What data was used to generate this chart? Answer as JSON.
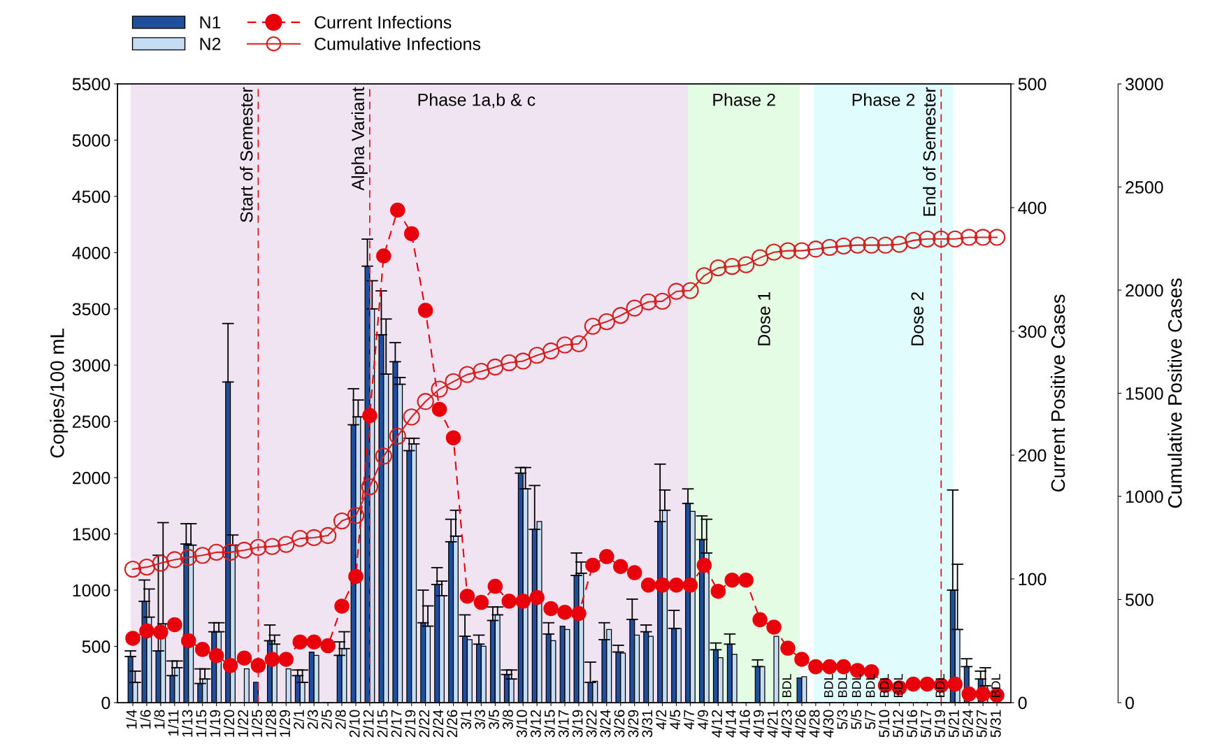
{
  "chart_data": {
    "type": "bar",
    "categories": [
      "1/4",
      "1/6",
      "1/8",
      "1/11",
      "1/13",
      "1/15",
      "1/19",
      "1/20",
      "1/22",
      "1/25",
      "1/28",
      "1/29",
      "2/1",
      "2/3",
      "2/5",
      "2/8",
      "2/10",
      "2/12",
      "2/15",
      "2/17",
      "2/19",
      "2/22",
      "2/24",
      "2/26",
      "3/1",
      "3/3",
      "3/5",
      "3/8",
      "3/10",
      "3/12",
      "3/15",
      "3/17",
      "3/19",
      "3/22",
      "3/24",
      "3/26",
      "3/29",
      "3/31",
      "4/2",
      "4/5",
      "4/7",
      "4/9",
      "4/12",
      "4/14",
      "4/16",
      "4/19",
      "4/21",
      "4/23",
      "4/26",
      "4/28",
      "4/30",
      "5/3",
      "5/5",
      "5/7",
      "5/10",
      "5/12",
      "5/16",
      "5/17",
      "5/19",
      "5/21",
      "5/24",
      "5/27",
      "5/31"
    ],
    "ylabel": "Copies/100 mL",
    "y2label": "Current Positive Cases",
    "y3label": "Cumulative Positive Cases",
    "ylim": [
      0,
      5500
    ],
    "yticks": [
      0,
      500,
      1000,
      1500,
      2000,
      2500,
      3000,
      3500,
      4000,
      4500,
      5000,
      5500
    ],
    "y2lim": [
      0,
      500
    ],
    "y2ticks": [
      0,
      100,
      200,
      300,
      400,
      500
    ],
    "y3lim": [
      0,
      3000
    ],
    "y3ticks": [
      0,
      500,
      1000,
      1500,
      2000,
      2500,
      3000
    ],
    "legend": "top left",
    "grid": false,
    "series": [
      {
        "name": "N1",
        "color": "#1f4e9c",
        "values": [
          410,
          900,
          460,
          240,
          1410,
          170,
          630,
          2850,
          null,
          180,
          550,
          null,
          240,
          450,
          null,
          420,
          2470,
          3880,
          3270,
          3030,
          2240,
          710,
          1050,
          1430,
          590,
          520,
          730,
          250,
          2040,
          1540,
          610,
          680,
          1130,
          180,
          560,
          450,
          740,
          630,
          1610,
          660,
          1770,
          1450,
          470,
          520,
          null,
          320,
          null,
          null,
          220,
          null,
          null,
          null,
          null,
          null,
          null,
          null,
          null,
          null,
          null,
          1000,
          320,
          210,
          null
        ],
        "errors": [
          [
            410,
            460
          ],
          [
            900,
            1090
          ],
          [
            460,
            1310
          ],
          [
            240,
            370
          ],
          [
            1410,
            1590
          ],
          [
            170,
            300
          ],
          [
            630,
            710
          ],
          [
            2850,
            3370
          ],
          null,
          null,
          [
            550,
            690
          ],
          null,
          [
            240,
            290
          ],
          null,
          null,
          [
            420,
            540
          ],
          [
            2470,
            2790
          ],
          [
            3880,
            4120
          ],
          [
            3270,
            3660
          ],
          [
            3030,
            3200
          ],
          [
            2240,
            2350
          ],
          [
            710,
            1000
          ],
          [
            1050,
            1200
          ],
          [
            1430,
            1630
          ],
          [
            590,
            780
          ],
          [
            520,
            600
          ],
          [
            730,
            850
          ],
          [
            250,
            290
          ],
          [
            2040,
            2090
          ],
          [
            1540,
            1930
          ],
          [
            610,
            710
          ],
          null,
          [
            1130,
            1330
          ],
          [
            180,
            360
          ],
          [
            560,
            710
          ],
          [
            450,
            510
          ],
          [
            740,
            920
          ],
          [
            630,
            690
          ],
          [
            1610,
            2120
          ],
          [
            660,
            820
          ],
          [
            1770,
            1900
          ],
          [
            1450,
            1660
          ],
          [
            470,
            530
          ],
          [
            520,
            610
          ],
          null,
          [
            320,
            380
          ],
          null,
          null,
          null,
          null,
          null,
          null,
          null,
          null,
          null,
          null,
          null,
          null,
          null,
          [
            1000,
            1890
          ],
          [
            320,
            390
          ],
          [
            210,
            280
          ],
          null
        ],
        "value_labels": [
          null,
          null,
          null,
          null,
          null,
          null,
          null,
          null,
          null,
          null,
          null,
          null,
          null,
          null,
          null,
          null,
          null,
          null,
          null,
          null,
          null,
          null,
          null,
          null,
          null,
          null,
          null,
          null,
          null,
          null,
          null,
          null,
          null,
          null,
          null,
          null,
          null,
          null,
          null,
          null,
          null,
          null,
          null,
          null,
          null,
          null,
          null,
          "BDL",
          null,
          null,
          "BDL",
          "BDL",
          "BDL",
          "BDL",
          "BDL",
          "BDL",
          null,
          null,
          "BDL",
          null,
          null,
          null,
          "BDL"
        ]
      },
      {
        "name": "N2",
        "color": "#c5dcf5",
        "values": [
          180,
          760,
          700,
          310,
          1400,
          210,
          630,
          1400,
          300,
          null,
          520,
          300,
          180,
          420,
          null,
          480,
          2540,
          3500,
          2920,
          2830,
          2300,
          680,
          950,
          1480,
          560,
          500,
          780,
          210,
          1900,
          1610,
          550,
          650,
          1150,
          190,
          650,
          440,
          600,
          590,
          1710,
          660,
          1700,
          1330,
          400,
          430,
          null,
          320,
          590,
          null,
          230,
          null,
          null,
          null,
          null,
          null,
          null,
          null,
          null,
          null,
          null,
          650,
          null,
          150,
          null
        ],
        "errors": [
          [
            180,
            280
          ],
          [
            760,
            1010
          ],
          [
            700,
            1600
          ],
          [
            310,
            370
          ],
          [
            1400,
            1590
          ],
          [
            210,
            300
          ],
          [
            630,
            710
          ],
          [
            1400,
            1490
          ],
          null,
          null,
          [
            520,
            600
          ],
          null,
          [
            180,
            290
          ],
          null,
          null,
          [
            480,
            630
          ],
          [
            2540,
            2690
          ],
          [
            3500,
            3750
          ],
          [
            2920,
            3410
          ],
          [
            2830,
            2890
          ],
          [
            2300,
            2350
          ],
          [
            680,
            860
          ],
          [
            950,
            1080
          ],
          [
            1480,
            1710
          ],
          null,
          null,
          [
            780,
            850
          ],
          [
            210,
            290
          ],
          [
            1900,
            2090
          ],
          null,
          null,
          null,
          [
            1150,
            1250
          ],
          null,
          null,
          null,
          null,
          null,
          [
            1710,
            1890
          ],
          null,
          null,
          [
            1330,
            1630
          ],
          null,
          null,
          null,
          null,
          null,
          null,
          null,
          null,
          null,
          null,
          null,
          null,
          null,
          null,
          null,
          null,
          null,
          [
            650,
            1230
          ],
          null,
          [
            150,
            310
          ],
          null
        ]
      },
      {
        "name": "Current Infections",
        "type": "line",
        "axis": "y2",
        "color": "#e8000b",
        "marker": "circle",
        "line_style": "dashed",
        "values": [
          52,
          58,
          57,
          63,
          50,
          43,
          38,
          30,
          36,
          30,
          35,
          35,
          49,
          49,
          46,
          78,
          102,
          232,
          361,
          398,
          379,
          317,
          237,
          214,
          86,
          81,
          94,
          82,
          82,
          85,
          76,
          73,
          72,
          111,
          118,
          110,
          105,
          95,
          95,
          95,
          95,
          111,
          90,
          99,
          99,
          67,
          61,
          44,
          35,
          29,
          29,
          29,
          26,
          25,
          14,
          12,
          15,
          15,
          14,
          15,
          7,
          7,
          6
        ]
      },
      {
        "name": "Cumulative Infections",
        "type": "line",
        "axis": "y3",
        "color": "#d42020",
        "marker": "circle",
        "line_style": "solid",
        "values": [
          647,
          657,
          676,
          693,
          704,
          714,
          729,
          729,
          739,
          753,
          757,
          767,
          796,
          800,
          810,
          881,
          907,
          1047,
          1195,
          1292,
          1385,
          1460,
          1520,
          1556,
          1591,
          1606,
          1627,
          1648,
          1656,
          1684,
          1705,
          1734,
          1740,
          1825,
          1847,
          1877,
          1913,
          1943,
          1946,
          1994,
          1998,
          2070,
          2108,
          2115,
          2123,
          2157,
          2184,
          2191,
          2191,
          2199,
          2207,
          2214,
          2218,
          2218,
          2218,
          2222,
          2241,
          2248,
          2248,
          2248,
          2256,
          2256,
          2256
        ]
      }
    ],
    "bands": [
      {
        "axis": "x",
        "from": "1/4",
        "to": "4/7",
        "label": "Phase 1a,b & c",
        "color": "#f0e4f2"
      },
      {
        "axis": "x",
        "from": "4/7",
        "to": "4/26",
        "label": "Phase 2",
        "color": "#e4fbe4"
      },
      {
        "axis": "x",
        "from": "4/28",
        "to": "5/21",
        "label": "Phase 2",
        "color": "#e0fcfc"
      }
    ],
    "ref_lines": [
      {
        "axis": "x",
        "value": "1/25",
        "label": "Start of Semester",
        "color": "#d42020",
        "line_style": "dashed"
      },
      {
        "axis": "x",
        "value": "2/12",
        "label": "Alpha Variant",
        "color": "#d42020",
        "line_style": "dashed"
      },
      {
        "axis": "x",
        "value": "5/19",
        "label": "End of Semester",
        "color": "#d42020",
        "line_style": "dashed"
      }
    ],
    "annotations": [
      "Dose 1",
      "Dose 2"
    ]
  }
}
